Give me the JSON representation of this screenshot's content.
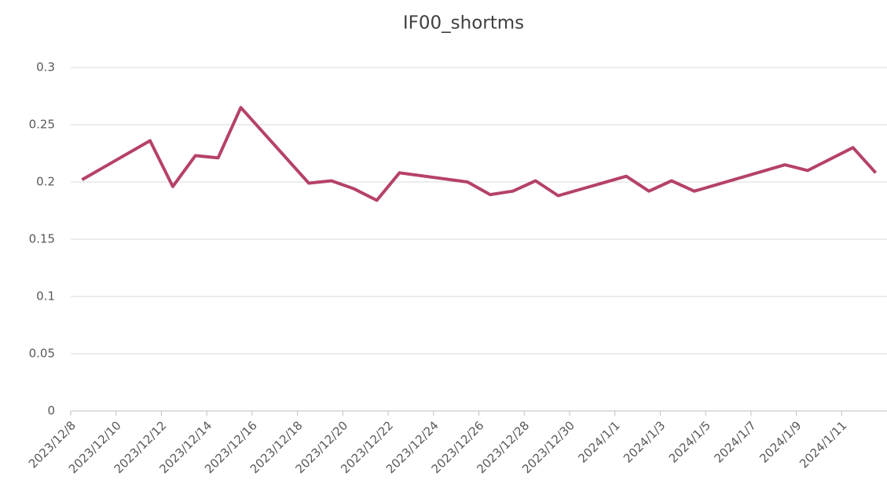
{
  "chart_data": {
    "type": "line",
    "title": "IF00_shortms",
    "x": [
      "2023/12/8",
      "2023/12/11",
      "2023/12/12",
      "2023/12/13",
      "2023/12/14",
      "2023/12/15",
      "2023/12/18",
      "2023/12/19",
      "2023/12/20",
      "2023/12/21",
      "2023/12/22",
      "2023/12/25",
      "2023/12/26",
      "2023/12/27",
      "2023/12/28",
      "2023/12/29",
      "2024/1/1",
      "2024/1/2",
      "2024/1/3",
      "2024/1/4",
      "2024/1/8",
      "2024/1/9",
      "2024/1/11",
      "2024/1/12"
    ],
    "series": [
      {
        "name": "IF00_shortms",
        "color": "#b5416a",
        "values": [
          0.202,
          0.236,
          0.196,
          0.223,
          0.221,
          0.265,
          0.199,
          0.201,
          0.194,
          0.184,
          0.208,
          0.2,
          0.189,
          0.192,
          0.201,
          0.188,
          0.205,
          0.192,
          0.201,
          0.192,
          0.215,
          0.21,
          0.23,
          0.208
        ]
      }
    ],
    "xlim": [
      "2023/12/8",
      "2024/1/13"
    ],
    "xticks": [
      "2023/12/8",
      "2023/12/10",
      "2023/12/12",
      "2023/12/14",
      "2023/12/16",
      "2023/12/18",
      "2023/12/20",
      "2023/12/22",
      "2023/12/24",
      "2023/12/26",
      "2023/12/28",
      "2023/12/30",
      "2024/1/1",
      "2024/1/3",
      "2024/1/5",
      "2024/1/7",
      "2024/1/9",
      "2024/1/11"
    ],
    "ylim": [
      0,
      0.3
    ],
    "yticks": [
      0,
      0.05,
      0.1,
      0.15,
      0.2,
      0.25,
      0.3
    ],
    "grid": true
  }
}
